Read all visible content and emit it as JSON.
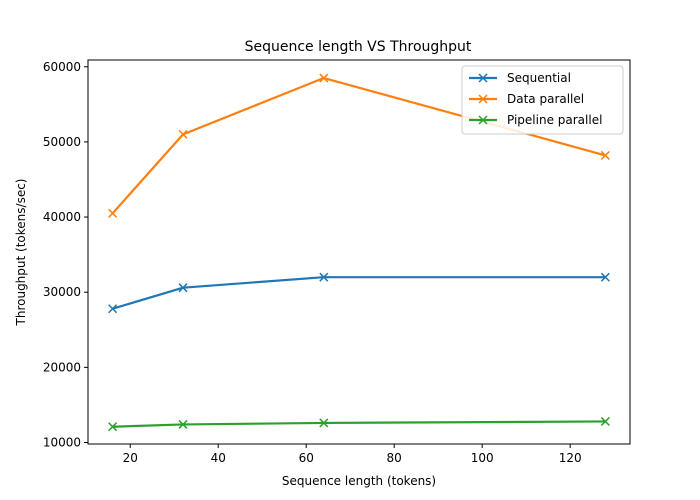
{
  "chart_data": {
    "type": "line",
    "title": "Sequence length VS Throughput",
    "xlabel": "Sequence length (tokens)",
    "ylabel": "Throughput (tokens/sec)",
    "xlim": [
      10.4,
      133.6
    ],
    "ylim": [
      9800,
      60900
    ],
    "xticks": [
      20,
      40,
      60,
      80,
      100,
      120
    ],
    "yticks": [
      10000,
      20000,
      30000,
      40000,
      50000,
      60000
    ],
    "x": [
      16,
      32,
      64,
      128
    ],
    "grid": false,
    "legend_position": "top-right",
    "series": [
      {
        "name": "Sequential",
        "color": "#1f77b4",
        "marker": "x",
        "values": [
          27800,
          30600,
          32000,
          32000
        ]
      },
      {
        "name": "Data parallel",
        "color": "#ff7f0e",
        "marker": "x",
        "values": [
          40500,
          51000,
          58500,
          48200
        ]
      },
      {
        "name": "Pipeline parallel",
        "color": "#2ca02c",
        "marker": "x",
        "values": [
          12100,
          12400,
          12600,
          12800
        ]
      }
    ]
  }
}
